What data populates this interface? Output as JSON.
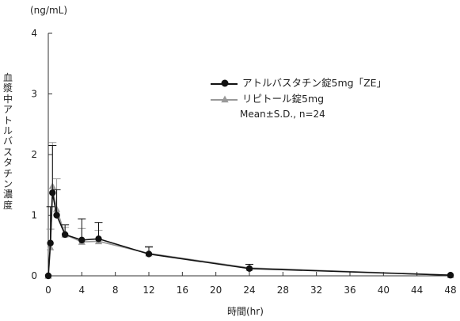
{
  "chart_data": {
    "type": "line",
    "title": "",
    "unit_label": "(ng/mL)",
    "xlabel": "時間(hr)",
    "ylabel": "血漿中アトルバスタチン濃度",
    "xlim": [
      0,
      48
    ],
    "ylim": [
      0,
      4
    ],
    "xticks": [
      0,
      4,
      8,
      12,
      16,
      20,
      24,
      28,
      32,
      36,
      40,
      44,
      48
    ],
    "yticks": [
      0,
      1,
      2,
      3,
      4
    ],
    "grid": false,
    "legend_position": "top-right",
    "legend_note": "Mean±S.D., n=24",
    "series": [
      {
        "name": "アトルバスタチン錠5mg「ZE」",
        "color": "#111111",
        "marker": "circle",
        "x": [
          0,
          0.25,
          0.5,
          1,
          2,
          4,
          6,
          12,
          24,
          48
        ],
        "y": [
          0,
          0.54,
          1.37,
          1.0,
          0.68,
          0.59,
          0.61,
          0.36,
          0.12,
          0.01
        ],
        "sd": [
          0,
          0.6,
          0.78,
          0.42,
          0.16,
          0.35,
          0.27,
          0.12,
          0.07,
          0
        ]
      },
      {
        "name": "リピトール錠5mg",
        "color": "#999999",
        "marker": "triangle",
        "x": [
          0,
          0.25,
          0.5,
          1,
          2,
          4,
          6,
          12,
          24,
          48
        ],
        "y": [
          0,
          0.47,
          1.48,
          1.1,
          0.68,
          0.56,
          0.57,
          0.37,
          0.13,
          0.01
        ],
        "sd": [
          0,
          0.3,
          0.72,
          0.5,
          0.12,
          0.22,
          0.18,
          0.1,
          0.06,
          0
        ]
      }
    ]
  }
}
